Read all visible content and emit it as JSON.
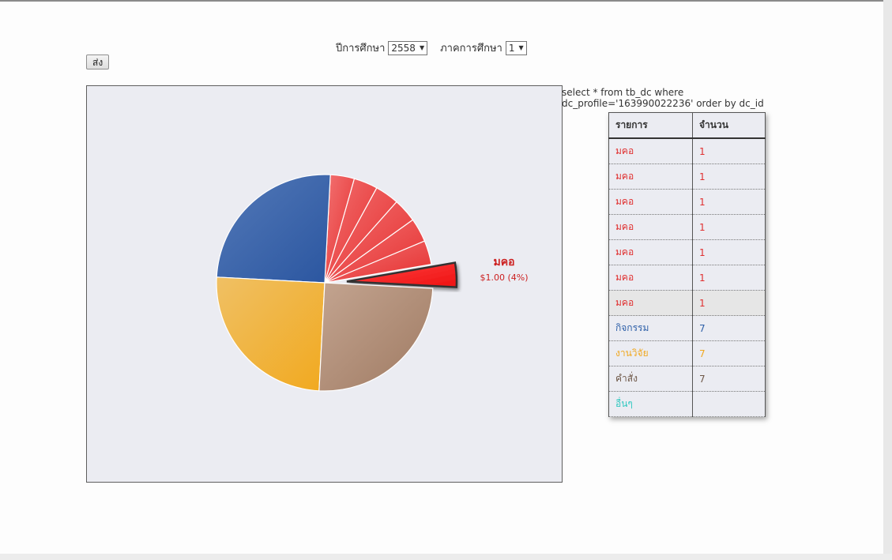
{
  "filters": {
    "year_label": "ปีการศึกษา",
    "year_value": "2558",
    "term_label": "ภาคการศึกษา",
    "term_value": "1",
    "submit_label": "ส่ง"
  },
  "sql_line1": "select * from tb_dc where",
  "sql_line2": "dc_profile='163990022236' order by dc_id",
  "table": {
    "headers": [
      "รายการ",
      "จำนวน"
    ],
    "rows": [
      {
        "label": "มคอ",
        "value": "1",
        "color": "#e03030"
      },
      {
        "label": "มคอ",
        "value": "1",
        "color": "#e03030"
      },
      {
        "label": "มคอ",
        "value": "1",
        "color": "#e03030"
      },
      {
        "label": "มคอ",
        "value": "1",
        "color": "#e03030"
      },
      {
        "label": "มคอ",
        "value": "1",
        "color": "#e03030"
      },
      {
        "label": "มคอ",
        "value": "1",
        "color": "#e03030"
      },
      {
        "label": "มคอ",
        "value": "1",
        "color": "#e03030"
      },
      {
        "label": "กิจกรรม",
        "value": "7",
        "color": "#2d5fa8"
      },
      {
        "label": "งานวิจัย",
        "value": "7",
        "color": "#f0a820"
      },
      {
        "label": "คำสั่ง",
        "value": "7",
        "color": "#6e5848"
      },
      {
        "label": "อื่นๆ",
        "value": "",
        "color": "#30c8c0"
      }
    ]
  },
  "chart_data": {
    "type": "pie",
    "slices": [
      {
        "name": "มคอ",
        "value": 1,
        "color": "#e03030",
        "exploded": true
      },
      {
        "name": "มคอ",
        "value": 1,
        "color": "#e03030"
      },
      {
        "name": "มคอ",
        "value": 1,
        "color": "#e03030"
      },
      {
        "name": "มคอ",
        "value": 1,
        "color": "#e03030"
      },
      {
        "name": "มคอ",
        "value": 1,
        "color": "#e03030"
      },
      {
        "name": "มคอ",
        "value": 1,
        "color": "#e03030"
      },
      {
        "name": "มคอ",
        "value": 1,
        "color": "#e03030"
      },
      {
        "name": "กิจกรรม",
        "value": 7,
        "color": "#2d5fa8"
      },
      {
        "name": "งานวิจัย",
        "value": 7,
        "color": "#f0a820"
      },
      {
        "name": "คำสั่ง",
        "value": 7,
        "color": "#a07a62"
      }
    ],
    "callout": {
      "title": "มคอ",
      "text": "$1.00 (4%)"
    }
  }
}
